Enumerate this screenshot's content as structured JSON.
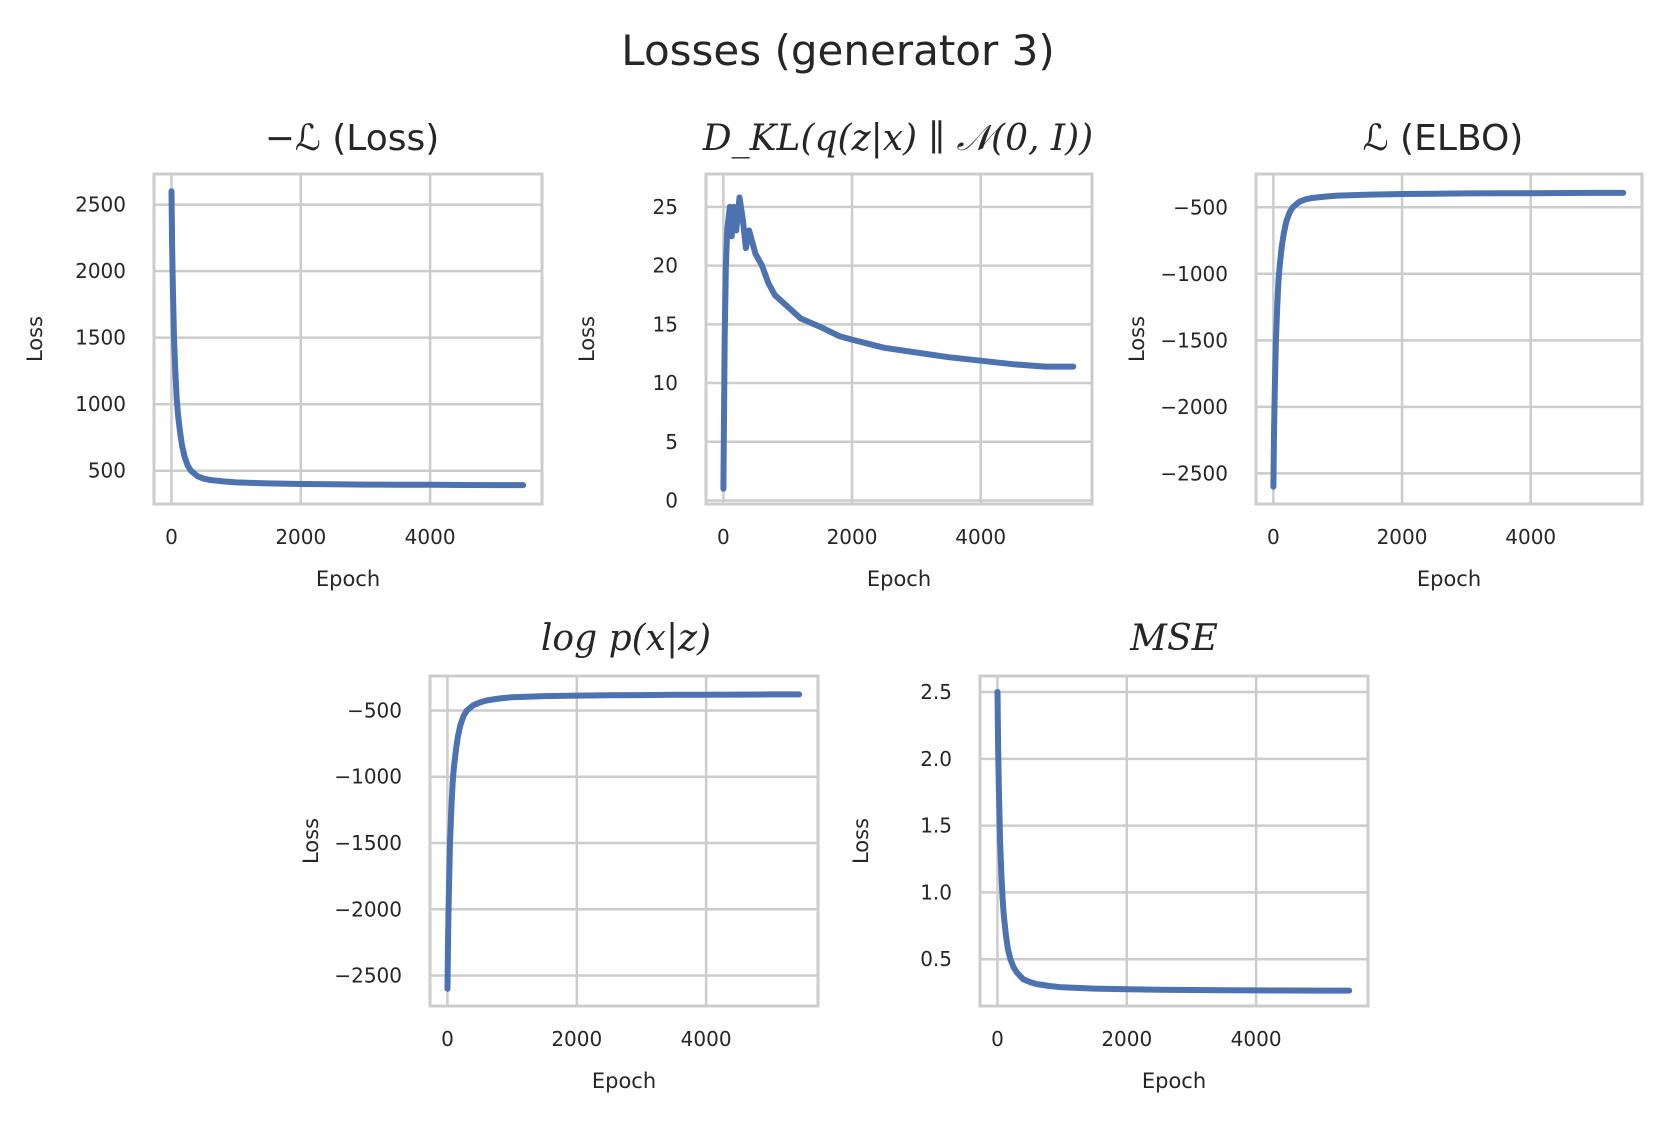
{
  "figure": {
    "title": "Losses (generator 3)"
  },
  "colors": {
    "series": "#4c72b0",
    "grid": "#cccccc",
    "text": "#262626"
  },
  "chart_data": [
    {
      "id": "neg-elbo",
      "type": "line",
      "title": "−ℒ (Loss)",
      "xlabel": "Epoch",
      "ylabel": "Loss",
      "xlim": [
        -270,
        5730
      ],
      "ylim": [
        250,
        2730
      ],
      "xticks": [
        0,
        2000,
        4000
      ],
      "yticks": [
        500,
        1000,
        1500,
        2000,
        2500
      ],
      "grid": true,
      "series": [
        {
          "x": [
            0,
            10,
            20,
            40,
            60,
            80,
            100,
            130,
            160,
            200,
            250,
            300,
            400,
            500,
            600,
            800,
            1000,
            1500,
            2000,
            2500,
            3000,
            3500,
            4000,
            4500,
            5000,
            5440
          ],
          "y": [
            2600,
            2200,
            1900,
            1500,
            1250,
            1050,
            930,
            800,
            700,
            610,
            540,
            500,
            460,
            440,
            430,
            420,
            412,
            405,
            400,
            398,
            396,
            395,
            394,
            393,
            392,
            392
          ]
        }
      ]
    },
    {
      "id": "kl",
      "type": "line",
      "title": "D_KL(q(z|x) ∥ 𝒩(0, I))",
      "xlabel": "Epoch",
      "ylabel": "Loss",
      "xlim": [
        -270,
        5730
      ],
      "ylim": [
        -0.3,
        27.8
      ],
      "xticks": [
        0,
        2000,
        4000
      ],
      "yticks": [
        0,
        5,
        10,
        15,
        20,
        25
      ],
      "grid": true,
      "series": [
        {
          "x": [
            0,
            20,
            40,
            60,
            80,
            100,
            130,
            160,
            200,
            250,
            300,
            350,
            400,
            500,
            600,
            700,
            800,
            1000,
            1200,
            1500,
            1800,
            2000,
            2500,
            3000,
            3500,
            4000,
            4500,
            5000,
            5440
          ],
          "y": [
            1,
            14,
            20,
            23,
            24,
            25,
            22.5,
            25,
            23,
            25.8,
            24,
            21.5,
            23,
            21,
            20,
            18.5,
            17.5,
            16.5,
            15.5,
            14.8,
            14,
            13.7,
            13,
            12.6,
            12.2,
            11.9,
            11.6,
            11.4,
            11.4
          ]
        }
      ]
    },
    {
      "id": "elbo",
      "type": "line",
      "title": "ℒ (ELBO)",
      "xlabel": "Epoch",
      "ylabel": "Loss",
      "xlim": [
        -270,
        5730
      ],
      "ylim": [
        -2730,
        -250
      ],
      "xticks": [
        0,
        2000,
        4000
      ],
      "yticks": [
        -500,
        -1000,
        -1500,
        -2000,
        -2500
      ],
      "ytick_labels": [
        "−500",
        "−1000",
        "−1500",
        "−2000",
        "−2500"
      ],
      "grid": true,
      "series": [
        {
          "x": [
            0,
            10,
            20,
            40,
            60,
            80,
            100,
            130,
            160,
            200,
            250,
            300,
            400,
            500,
            600,
            800,
            1000,
            1500,
            2000,
            2500,
            3000,
            3500,
            4000,
            4500,
            5000,
            5440
          ],
          "y": [
            -2600,
            -2200,
            -1900,
            -1500,
            -1250,
            -1050,
            -930,
            -800,
            -700,
            -610,
            -540,
            -500,
            -460,
            -440,
            -430,
            -420,
            -412,
            -405,
            -400,
            -398,
            -396,
            -395,
            -394,
            -393,
            -392,
            -392
          ]
        }
      ]
    },
    {
      "id": "log-px-z",
      "type": "line",
      "title": "log p(x|z)",
      "xlabel": "Epoch",
      "ylabel": "Loss",
      "xlim": [
        -270,
        5730
      ],
      "ylim": [
        -2730,
        -240
      ],
      "xticks": [
        0,
        2000,
        4000
      ],
      "yticks": [
        -500,
        -1000,
        -1500,
        -2000,
        -2500
      ],
      "ytick_labels": [
        "−500",
        "−1000",
        "−1500",
        "−2000",
        "−2500"
      ],
      "grid": true,
      "series": [
        {
          "x": [
            0,
            10,
            20,
            40,
            60,
            80,
            100,
            130,
            160,
            200,
            250,
            300,
            400,
            500,
            600,
            800,
            1000,
            1500,
            2000,
            2500,
            3000,
            3500,
            4000,
            4500,
            5000,
            5440
          ],
          "y": [
            -2600,
            -2200,
            -1900,
            -1500,
            -1250,
            -1050,
            -930,
            -800,
            -700,
            -610,
            -540,
            -500,
            -460,
            -440,
            -425,
            -410,
            -400,
            -392,
            -388,
            -386,
            -384,
            -382,
            -381,
            -380,
            -379,
            -379
          ]
        }
      ]
    },
    {
      "id": "mse",
      "type": "line",
      "title": "MSE",
      "xlabel": "Epoch",
      "ylabel": "Loss",
      "xlim": [
        -270,
        5730
      ],
      "ylim": [
        0.15,
        2.62
      ],
      "xticks": [
        0,
        2000,
        4000
      ],
      "yticks": [
        0.5,
        1.0,
        1.5,
        2.0,
        2.5
      ],
      "ytick_labels": [
        "0.5",
        "1.0",
        "1.5",
        "2.0",
        "2.5"
      ],
      "grid": true,
      "series": [
        {
          "x": [
            0,
            10,
            20,
            40,
            60,
            80,
            100,
            130,
            160,
            200,
            250,
            300,
            400,
            500,
            600,
            800,
            1000,
            1500,
            2000,
            2500,
            3000,
            3500,
            4000,
            4500,
            5000,
            5440
          ],
          "y": [
            2.5,
            2.1,
            1.8,
            1.4,
            1.15,
            0.95,
            0.82,
            0.68,
            0.58,
            0.5,
            0.44,
            0.4,
            0.35,
            0.33,
            0.315,
            0.3,
            0.29,
            0.28,
            0.275,
            0.272,
            0.27,
            0.268,
            0.267,
            0.266,
            0.265,
            0.265
          ]
        }
      ]
    }
  ]
}
